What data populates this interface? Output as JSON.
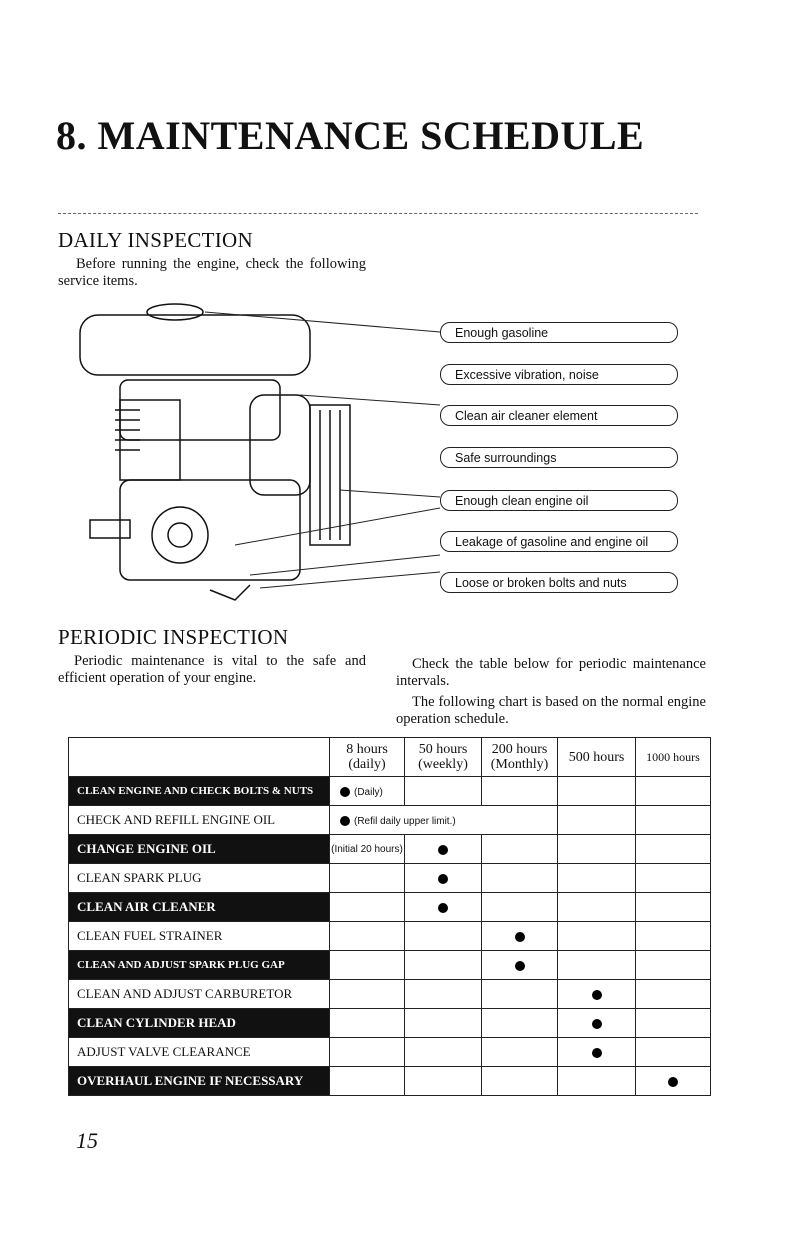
{
  "title": "8. MAINTENANCE SCHEDULE",
  "daily": {
    "heading": "DAILY INSPECTION",
    "text": "Before running the engine, check the following service items.",
    "callouts": [
      "Enough gasoline",
      "Excessive vibration, noise",
      "Clean air cleaner element",
      "Safe surroundings",
      "Enough clean engine oil",
      "Leakage of gasoline and engine oil",
      "Loose or broken bolts and nuts"
    ]
  },
  "periodic": {
    "heading": "PERIODIC INSPECTION",
    "text_left": "Periodic maintenance is vital to the safe and efficient operation of your engine.",
    "text_right_1": "Check the table below for periodic maintenance intervals.",
    "text_right_2": "The following chart is based on the normal engine operation schedule."
  },
  "table": {
    "headers": [
      "",
      "8 hours (daily)",
      "50 hours (weekly)",
      "200 hours (Monthly)",
      "500 hours",
      "1000 hours"
    ],
    "rows": [
      {
        "label": "CLEAN ENGINE AND CHECK BOLTS & NUTS",
        "col": 1,
        "note": "(Daily)"
      },
      {
        "label": "CHECK AND REFILL ENGINE OIL",
        "col": 1,
        "note": "(Refil daily upper limit.)"
      },
      {
        "label": "CHANGE ENGINE OIL",
        "col": 2,
        "initial_note": "(Initial 20 hours)"
      },
      {
        "label": "CLEAN SPARK PLUG",
        "col": 2
      },
      {
        "label": "CLEAN AIR CLEANER",
        "col": 2
      },
      {
        "label": "CLEAN FUEL STRAINER",
        "col": 3
      },
      {
        "label": "CLEAN AND ADJUST SPARK PLUG GAP",
        "col": 3
      },
      {
        "label": "CLEAN AND ADJUST CARBURETOR",
        "col": 4
      },
      {
        "label": "CLEAN CYLINDER HEAD",
        "col": 4
      },
      {
        "label": "ADJUST VALVE CLEARANCE",
        "col": 4
      },
      {
        "label": "OVERHAUL ENGINE IF NECESSARY",
        "col": 5
      }
    ]
  },
  "page_number": "15"
}
